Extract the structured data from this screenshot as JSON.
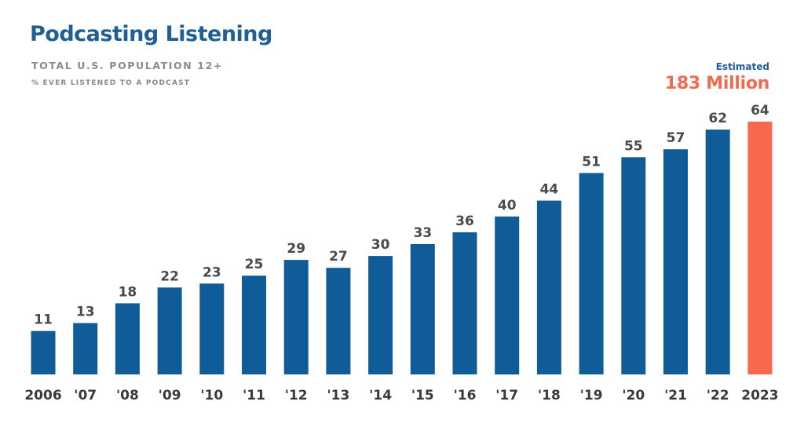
{
  "header": {
    "title": "Podcasting Listening",
    "subtitle": "TOTAL U.S. POPULATION 12+",
    "subtitle2": "% EVER LISTENED TO A PODCAST"
  },
  "estimate": {
    "label": "Estimated",
    "value": "183 Million"
  },
  "colors": {
    "bar": "#0f5c98",
    "highlight": "#f9674c",
    "title": "#1f5f96"
  },
  "chart_data": {
    "type": "bar",
    "categories": [
      "2006",
      "'07",
      "'08",
      "'09",
      "'10",
      "'11",
      "'12",
      "'13",
      "'14",
      "'15",
      "'16",
      "'17",
      "'18",
      "'19",
      "'20",
      "'21",
      "'22",
      "2023"
    ],
    "values": [
      11,
      13,
      18,
      22,
      23,
      25,
      29,
      27,
      30,
      33,
      36,
      40,
      44,
      51,
      55,
      57,
      62,
      64
    ],
    "highlight_index": 17,
    "ylim": [
      0,
      64
    ],
    "grid": false,
    "legend": "none",
    "title": "Podcasting Listening",
    "xlabel": "",
    "ylabel": ""
  }
}
